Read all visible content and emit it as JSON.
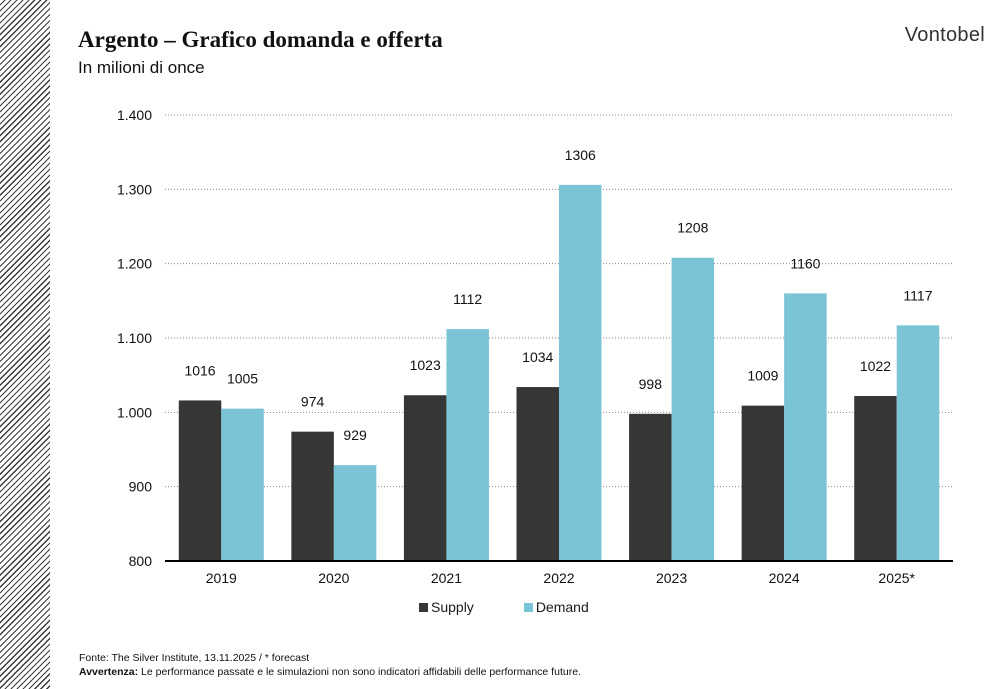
{
  "header": {
    "title": "Argento – Grafico domanda e offerta",
    "subtitle": "In milioni di once",
    "brand": "Vontobel"
  },
  "colors": {
    "supply": "#363734",
    "demand": "#7ac4d5",
    "grid": "#8a8a8a",
    "axis": "#000000"
  },
  "chart_data": {
    "type": "bar",
    "title": "Argento – Grafico domanda e offerta",
    "subtitle": "In milioni di once",
    "categories": [
      "2019",
      "2020",
      "2021",
      "2022",
      "2023",
      "2024",
      "2025*"
    ],
    "series": [
      {
        "name": "Supply",
        "values": [
          1016,
          974,
          1023,
          1034,
          998,
          1009,
          1022
        ]
      },
      {
        "name": "Demand",
        "values": [
          1005,
          929,
          1112,
          1306,
          1208,
          1160,
          1117
        ]
      }
    ],
    "ylim": [
      800,
      1400
    ],
    "yticks": [
      800,
      900,
      1000,
      1100,
      1200,
      1300,
      1400
    ],
    "ytick_labels": [
      "800",
      "900",
      "1.000",
      "1.100",
      "1.200",
      "1.300",
      "1.400"
    ],
    "grid": "horizontal-dotted",
    "legend": "bottom-center",
    "data_labels": true
  },
  "footer": {
    "source": "Fonte: The Silver Institute, 13.11.2025 / * forecast",
    "warning_label": "Avvertenza:",
    "warning_text": " Le performance passate e le simulazioni non sono indicatori affidabili delle performance future."
  }
}
